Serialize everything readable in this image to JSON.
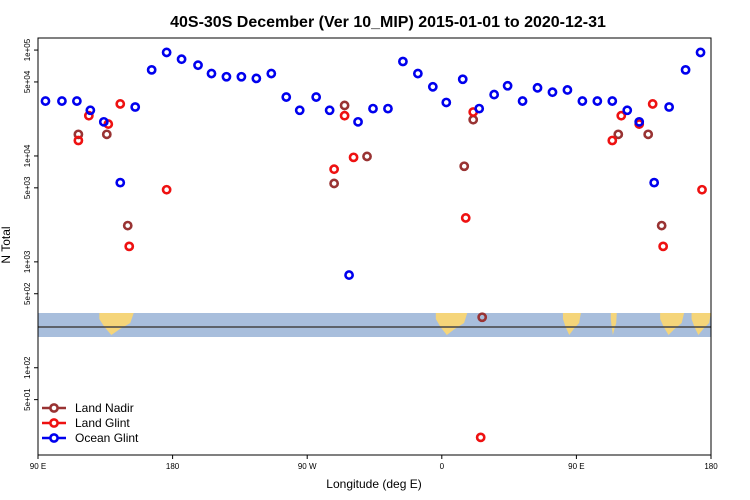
{
  "chart_data": {
    "type": "scatter",
    "title": "40S-30S December (Ver 10_MIP)   2015-01-01 to 2020-12-31",
    "xlabel": "Longitude (deg E)",
    "ylabel": "N Total",
    "xlim": [
      90,
      540
    ],
    "ylog": true,
    "ylim": [
      15,
      130000
    ],
    "x_ticks": [
      {
        "value": 90,
        "label": "90 E"
      },
      {
        "value": 180,
        "label": "180"
      },
      {
        "value": 270,
        "label": "90 W"
      },
      {
        "value": 360,
        "label": "0"
      },
      {
        "value": 450,
        "label": "90 E"
      },
      {
        "value": 540,
        "label": "180"
      }
    ],
    "y_ticks": [
      {
        "value": 50,
        "label": "5e+01"
      },
      {
        "value": 100,
        "label": "1e+02"
      },
      {
        "value": 500,
        "label": "5e+02"
      },
      {
        "value": 1000,
        "label": "1e+03"
      },
      {
        "value": 5000,
        "label": "5e+03"
      },
      {
        "value": 10000,
        "label": "1e+04"
      },
      {
        "value": 50000,
        "label": "5e+04"
      },
      {
        "value": 100000,
        "label": "1e+05"
      }
    ],
    "land_bands": [
      [
        131,
        154
      ],
      [
        356,
        377
      ],
      [
        441,
        453
      ],
      [
        473,
        477
      ],
      [
        506,
        522
      ],
      [
        527,
        540
      ]
    ],
    "legend_position": "bottom-left",
    "series": [
      {
        "name": "Land Nadir",
        "color": "#993333",
        "points": [
          {
            "x": 117,
            "y": 16000
          },
          {
            "x": 136,
            "y": 16000
          },
          {
            "x": 150,
            "y": 2200
          },
          {
            "x": 288,
            "y": 5500
          },
          {
            "x": 295,
            "y": 30000
          },
          {
            "x": 310,
            "y": 9900
          },
          {
            "x": 375,
            "y": 8000
          },
          {
            "x": 381,
            "y": 22000
          },
          {
            "x": 387,
            "y": 300
          },
          {
            "x": 478,
            "y": 16000
          },
          {
            "x": 498,
            "y": 16000
          },
          {
            "x": 507,
            "y": 2200
          }
        ]
      },
      {
        "name": "Land Glint",
        "color": "#ee1111",
        "points": [
          {
            "x": 117,
            "y": 14000
          },
          {
            "x": 124,
            "y": 24000
          },
          {
            "x": 137,
            "y": 20000
          },
          {
            "x": 145,
            "y": 31000
          },
          {
            "x": 151,
            "y": 1400
          },
          {
            "x": 176,
            "y": 4800
          },
          {
            "x": 288,
            "y": 7500
          },
          {
            "x": 295,
            "y": 24000
          },
          {
            "x": 301,
            "y": 9700
          },
          {
            "x": 376,
            "y": 2600
          },
          {
            "x": 381,
            "y": 26000
          },
          {
            "x": 386,
            "y": 22
          },
          {
            "x": 474,
            "y": 14000
          },
          {
            "x": 480,
            "y": 24000
          },
          {
            "x": 492,
            "y": 20000
          },
          {
            "x": 501,
            "y": 31000
          },
          {
            "x": 508,
            "y": 1400
          },
          {
            "x": 534,
            "y": 4800
          }
        ]
      },
      {
        "name": "Ocean Glint",
        "color": "#0000ee",
        "points": [
          {
            "x": 95,
            "y": 33000
          },
          {
            "x": 106,
            "y": 33000
          },
          {
            "x": 116,
            "y": 33000
          },
          {
            "x": 125,
            "y": 27000
          },
          {
            "x": 134,
            "y": 21000
          },
          {
            "x": 145,
            "y": 5600
          },
          {
            "x": 155,
            "y": 29000
          },
          {
            "x": 166,
            "y": 65000
          },
          {
            "x": 176,
            "y": 95000
          },
          {
            "x": 186,
            "y": 82000
          },
          {
            "x": 197,
            "y": 72000
          },
          {
            "x": 206,
            "y": 60000
          },
          {
            "x": 216,
            "y": 56000
          },
          {
            "x": 226,
            "y": 56000
          },
          {
            "x": 236,
            "y": 54000
          },
          {
            "x": 246,
            "y": 60000
          },
          {
            "x": 256,
            "y": 36000
          },
          {
            "x": 265,
            "y": 27000
          },
          {
            "x": 276,
            "y": 36000
          },
          {
            "x": 285,
            "y": 27000
          },
          {
            "x": 298,
            "y": 750
          },
          {
            "x": 304,
            "y": 21000
          },
          {
            "x": 314,
            "y": 28000
          },
          {
            "x": 324,
            "y": 28000
          },
          {
            "x": 334,
            "y": 78000
          },
          {
            "x": 344,
            "y": 60000
          },
          {
            "x": 354,
            "y": 45000
          },
          {
            "x": 363,
            "y": 32000
          },
          {
            "x": 374,
            "y": 53000
          },
          {
            "x": 385,
            "y": 28000
          },
          {
            "x": 395,
            "y": 38000
          },
          {
            "x": 404,
            "y": 46000
          },
          {
            "x": 414,
            "y": 33000
          },
          {
            "x": 424,
            "y": 44000
          },
          {
            "x": 434,
            "y": 40000
          },
          {
            "x": 444,
            "y": 42000
          },
          {
            "x": 454,
            "y": 33000
          },
          {
            "x": 464,
            "y": 33000
          },
          {
            "x": 474,
            "y": 33000
          },
          {
            "x": 484,
            "y": 27000
          },
          {
            "x": 492,
            "y": 21000
          },
          {
            "x": 502,
            "y": 5600
          },
          {
            "x": 512,
            "y": 29000
          },
          {
            "x": 523,
            "y": 65000
          },
          {
            "x": 533,
            "y": 95000
          }
        ]
      }
    ]
  }
}
